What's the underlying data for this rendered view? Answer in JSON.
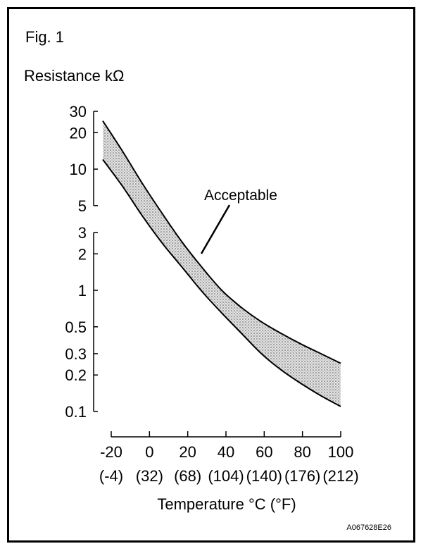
{
  "chart_data": {
    "type": "area",
    "figure_label": "Fig. 1",
    "ylabel": "Resistance kΩ",
    "xlabel": "Temperature °C (°F)",
    "annotation": "Acceptable",
    "image_code": "A067628E26",
    "y_scale": "log",
    "ylim": [
      0.1,
      30
    ],
    "xlim": [
      -20,
      100
    ],
    "grid": false,
    "x_ticks": [
      {
        "value": -20,
        "label": "-20",
        "sublabel": "(-4)"
      },
      {
        "value": 0,
        "label": "0",
        "sublabel": "(32)"
      },
      {
        "value": 20,
        "label": "20",
        "sublabel": "(68)"
      },
      {
        "value": 40,
        "label": "40",
        "sublabel": "(104)"
      },
      {
        "value": 60,
        "label": "60",
        "sublabel": "(140)"
      },
      {
        "value": 80,
        "label": "80",
        "sublabel": "(176)"
      },
      {
        "value": 100,
        "label": "100",
        "sublabel": "(212)"
      }
    ],
    "y_ticks": [
      {
        "value": 30,
        "label": "30"
      },
      {
        "value": 20,
        "label": "20"
      },
      {
        "value": 10,
        "label": "10"
      },
      {
        "value": 5,
        "label": "5"
      },
      {
        "value": 3,
        "label": "3"
      },
      {
        "value": 2,
        "label": "2"
      },
      {
        "value": 1,
        "label": "1"
      },
      {
        "value": 0.5,
        "label": "0.5"
      },
      {
        "value": 0.3,
        "label": "0.3"
      },
      {
        "value": 0.2,
        "label": "0.2"
      },
      {
        "value": 0.1,
        "label": "0.1"
      }
    ],
    "upper_bound": {
      "x": [
        -20,
        -10,
        0,
        10,
        20,
        30,
        40,
        50,
        60,
        70,
        80,
        90,
        100
      ],
      "y": [
        25,
        14,
        7.6,
        4.3,
        2.5,
        1.55,
        1.0,
        0.72,
        0.55,
        0.44,
        0.36,
        0.3,
        0.25
      ]
    },
    "lower_bound": {
      "x": [
        -20,
        -10,
        0,
        10,
        20,
        30,
        40,
        50,
        60,
        70,
        80,
        90,
        100
      ],
      "y": [
        12,
        7.2,
        4.1,
        2.45,
        1.55,
        0.98,
        0.65,
        0.44,
        0.3,
        0.22,
        0.17,
        0.135,
        0.11
      ]
    },
    "fill_color": "#b5b5b5",
    "line_color": "#000000"
  }
}
